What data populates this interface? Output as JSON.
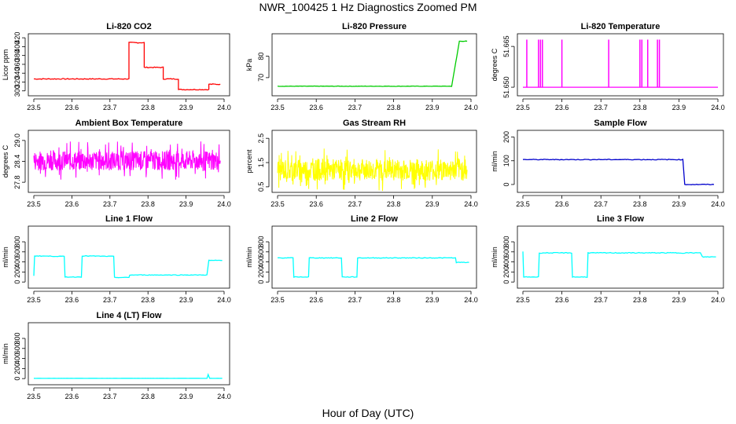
{
  "page": {
    "title": "NWR_100425  1 Hz Diagnostics Zoomed PM",
    "xlabel": "Hour of Day (UTC)"
  },
  "chart_data": [
    {
      "type": "line",
      "title": "Li-820 CO2",
      "ylabel": "Licor ppm",
      "color": "#ff0000",
      "xlim": [
        23.5,
        24.0
      ],
      "xticks": [
        "23.5",
        "23.6",
        "23.7",
        "23.8",
        "23.9",
        "24.0"
      ],
      "ylim": [
        296,
        422
      ],
      "yticks": [
        "300",
        "320",
        "340",
        "360",
        "380",
        "400",
        "420"
      ],
      "x": [
        23.5,
        23.75,
        23.75,
        23.79,
        23.79,
        23.84,
        23.84,
        23.88,
        23.88,
        23.96,
        23.96,
        23.99
      ],
      "y": [
        327,
        327,
        409,
        409,
        353,
        353,
        327,
        327,
        303,
        303,
        315,
        315
      ],
      "noise": 1
    },
    {
      "type": "line",
      "title": "Li-820 Pressure",
      "ylabel": "kPa",
      "color": "#00cc00",
      "xlim": [
        23.5,
        24.0
      ],
      "xticks": [
        "23.5",
        "23.6",
        "23.7",
        "23.8",
        "23.9",
        "24.0"
      ],
      "ylim": [
        63,
        89
      ],
      "yticks": [
        "70",
        "80"
      ],
      "x": [
        23.5,
        23.95,
        23.97,
        23.99
      ],
      "y": [
        66,
        66,
        87,
        87
      ],
      "noise": 0.1
    },
    {
      "type": "line",
      "title": "Li-820 Temperature",
      "ylabel": "degrees C",
      "color": "#ff00ff",
      "xlim": [
        23.5,
        24.0
      ],
      "xticks": [
        "23.5",
        "23.6",
        "23.7",
        "23.8",
        "23.9",
        "24.0"
      ],
      "ylim": [
        51.648,
        51.6685
      ],
      "yticks": [
        "51.650",
        "51.665"
      ],
      "x": [
        23.5,
        24.0
      ],
      "y": [
        51.65,
        51.65
      ],
      "spikes": [
        23.51,
        23.54,
        23.545,
        23.55,
        23.6,
        23.72,
        23.8,
        23.805,
        23.82,
        23.845,
        23.85
      ],
      "spike_top": 51.6675,
      "noise": 0
    },
    {
      "type": "line",
      "title": "Ambient Box Temperature",
      "ylabel": "degrees C",
      "color": "#ff00ff",
      "xlim": [
        23.5,
        24.0
      ],
      "xticks": [
        "23.5",
        "23.6",
        "23.7",
        "23.8",
        "23.9",
        "24.0"
      ],
      "ylim": [
        27.6,
        29.2
      ],
      "yticks": [
        "27.8",
        "28.4",
        "29.0"
      ],
      "x": [
        23.5,
        23.99
      ],
      "y": [
        28.42,
        28.42
      ],
      "noise": 0.28,
      "noise_style": "dense"
    },
    {
      "type": "line",
      "title": "Gas Stream RH",
      "ylabel": "percent",
      "color": "#ffff00",
      "xlim": [
        23.5,
        24.0
      ],
      "xticks": [
        "23.5",
        "23.6",
        "23.7",
        "23.8",
        "23.9",
        "24.0"
      ],
      "ylim": [
        0.4,
        2.7
      ],
      "yticks": [
        "0.5",
        "1.5",
        "2.5"
      ],
      "x": [
        23.5,
        23.99
      ],
      "y": [
        1.2,
        1.2
      ],
      "noise": 0.45,
      "noise_style": "dense"
    },
    {
      "type": "line",
      "title": "Sample Flow",
      "ylabel": "ml/min",
      "color": "#0000cc",
      "xlim": [
        23.5,
        24.0
      ],
      "xticks": [
        "23.5",
        "23.6",
        "23.7",
        "23.8",
        "23.9",
        "24.0"
      ],
      "ylim": [
        -20,
        215
      ],
      "yticks": [
        "0",
        "100",
        "200"
      ],
      "x": [
        23.5,
        23.91,
        23.915,
        23.99
      ],
      "y": [
        105,
        105,
        0,
        0
      ],
      "noise": 1.5
    },
    {
      "type": "line",
      "title": "Line 1 Flow",
      "ylabel": "ml/min",
      "color": "#00ffff",
      "xlim": [
        23.5,
        24.0
      ],
      "xticks": [
        "23.5",
        "23.6",
        "23.7",
        "23.8",
        "23.9",
        "24.0"
      ],
      "ylim": [
        -60,
        1050
      ],
      "yticks": [
        "0",
        "200",
        "400",
        "600",
        "800"
      ],
      "x": [
        23.5,
        23.502,
        23.58,
        23.582,
        23.625,
        23.627,
        23.71,
        23.712,
        23.75,
        23.752,
        23.955,
        23.96,
        23.995
      ],
      "y": [
        120,
        520,
        510,
        100,
        100,
        520,
        510,
        90,
        90,
        140,
        140,
        430,
        430
      ],
      "noise": 6
    },
    {
      "type": "line",
      "title": "Line 2 Flow",
      "ylabel": "ml/min",
      "color": "#00ffff",
      "xlim": [
        23.5,
        24.0
      ],
      "xticks": [
        "23.5",
        "23.6",
        "23.7",
        "23.8",
        "23.9",
        "24.0"
      ],
      "ylim": [
        -60,
        1050
      ],
      "yticks": [
        "0",
        "200",
        "400",
        "600",
        "800"
      ],
      "x": [
        23.5,
        23.54,
        23.542,
        23.58,
        23.582,
        23.665,
        23.667,
        23.705,
        23.707,
        23.96,
        23.962,
        23.995
      ],
      "y": [
        480,
        480,
        100,
        100,
        480,
        480,
        100,
        100,
        480,
        480,
        390,
        390
      ],
      "noise": 6
    },
    {
      "type": "line",
      "title": "Line 3 Flow",
      "ylabel": "ml/min",
      "color": "#00ffff",
      "xlim": [
        23.5,
        24.0
      ],
      "xticks": [
        "23.5",
        "23.6",
        "23.7",
        "23.8",
        "23.9",
        "24.0"
      ],
      "ylim": [
        -60,
        1050
      ],
      "yticks": [
        "0",
        "200",
        "400",
        "600",
        "800"
      ],
      "x": [
        23.5,
        23.502,
        23.54,
        23.542,
        23.625,
        23.627,
        23.665,
        23.667,
        23.955,
        23.96,
        23.995
      ],
      "y": [
        600,
        100,
        100,
        580,
        580,
        100,
        100,
        580,
        580,
        500,
        500
      ],
      "noise": 8
    },
    {
      "type": "line",
      "title": "Line 4 (LT) Flow",
      "ylabel": "ml/min",
      "color": "#00ffff",
      "xlim": [
        23.5,
        24.0
      ],
      "xticks": [
        "23.5",
        "23.6",
        "23.7",
        "23.8",
        "23.9",
        "24.0"
      ],
      "ylim": [
        -60,
        1050
      ],
      "yticks": [
        "0",
        "200",
        "400",
        "600",
        "800"
      ],
      "x": [
        23.5,
        23.955,
        23.958,
        23.962,
        23.995
      ],
      "y": [
        5,
        5,
        80,
        5,
        5
      ],
      "noise": 1
    }
  ]
}
